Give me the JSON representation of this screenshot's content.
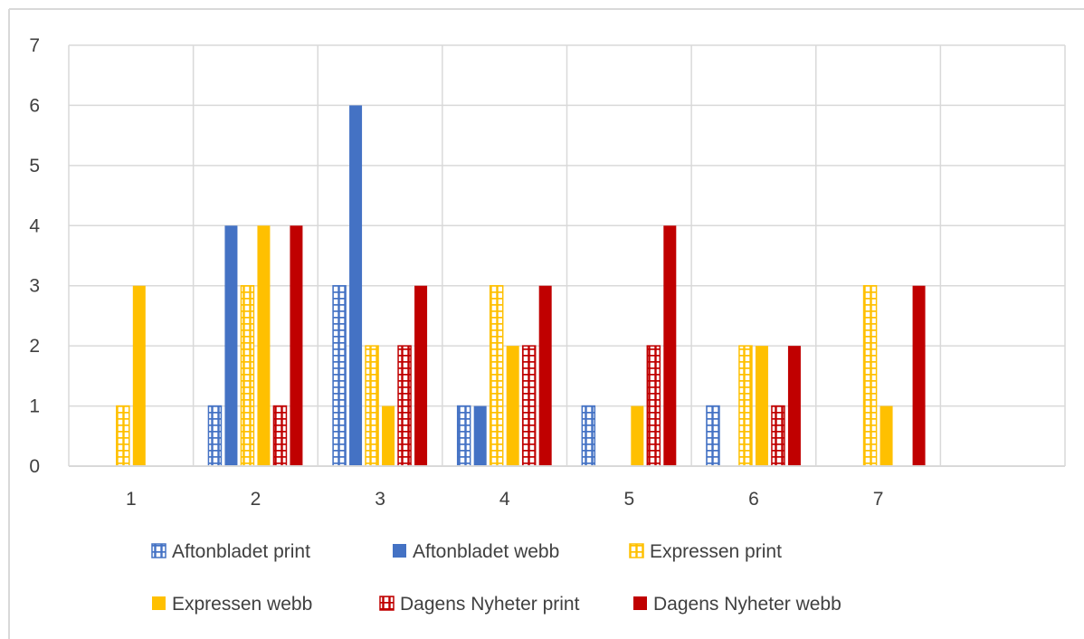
{
  "chart_data": {
    "type": "bar",
    "title": "",
    "xlabel": "",
    "ylabel": "",
    "categories": [
      "1",
      "2",
      "3",
      "4",
      "5",
      "6",
      "7",
      ""
    ],
    "ylim": [
      0,
      7
    ],
    "yticks": [
      0,
      1,
      2,
      3,
      4,
      5,
      6,
      7
    ],
    "grid": true,
    "legend_position": "bottom",
    "series": [
      {
        "name": "Aftonbladet print",
        "color": "#4472C4",
        "pattern": "checker",
        "values": [
          0,
          1,
          3,
          1,
          1,
          1,
          0,
          0
        ]
      },
      {
        "name": "Aftonbladet webb",
        "color": "#4472C4",
        "pattern": "solid",
        "values": [
          0,
          4,
          6,
          1,
          0,
          0,
          0,
          0
        ]
      },
      {
        "name": "Expressen print",
        "color": "#FFC000",
        "pattern": "checker",
        "values": [
          1,
          3,
          2,
          3,
          0,
          2,
          3,
          0
        ]
      },
      {
        "name": "Expressen webb",
        "color": "#FFC000",
        "pattern": "solid",
        "values": [
          3,
          4,
          1,
          2,
          1,
          2,
          1,
          0
        ]
      },
      {
        "name": "Dagens Nyheter print",
        "color": "#C00000",
        "pattern": "checker",
        "values": [
          0,
          1,
          2,
          2,
          2,
          1,
          0,
          0
        ]
      },
      {
        "name": "Dagens Nyheter webb",
        "color": "#C00000",
        "pattern": "solid",
        "values": [
          0,
          4,
          3,
          3,
          4,
          2,
          3,
          0
        ]
      }
    ]
  }
}
